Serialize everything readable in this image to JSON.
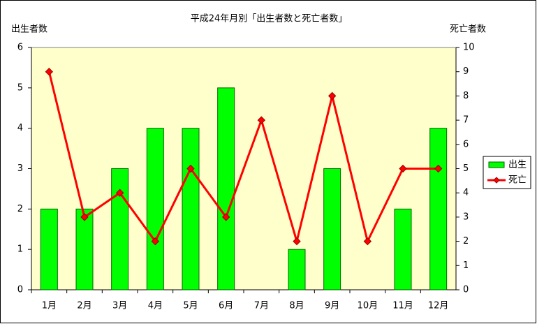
{
  "chart_data": {
    "type": "bar",
    "title": "平成24年月別「出生者数と死亡者数」",
    "ylabel": "出生者数",
    "y2label": "死亡者数",
    "categories": [
      "1月",
      "2月",
      "3月",
      "4月",
      "5月",
      "6月",
      "7月",
      "8月",
      "9月",
      "10月",
      "11月",
      "12月"
    ],
    "series": [
      {
        "name": "出生",
        "type": "bar",
        "color": "#00ff00",
        "values": [
          2,
          2,
          3,
          4,
          4,
          5,
          0,
          1,
          3,
          0,
          2,
          4
        ]
      },
      {
        "name": "死亡",
        "type": "line",
        "axis": "y2",
        "color": "#ff0000",
        "values": [
          9,
          3,
          4,
          2,
          5,
          3,
          7,
          2,
          8,
          2,
          5,
          5
        ]
      }
    ],
    "ylim": [
      0,
      6
    ],
    "yticks": [
      0,
      1,
      2,
      3,
      4,
      5,
      6
    ],
    "y2lim": [
      0,
      10
    ],
    "y2ticks": [
      0,
      1,
      2,
      3,
      4,
      5,
      6,
      7,
      8,
      9,
      10
    ],
    "legend": "right",
    "background": "#ffffcc"
  }
}
